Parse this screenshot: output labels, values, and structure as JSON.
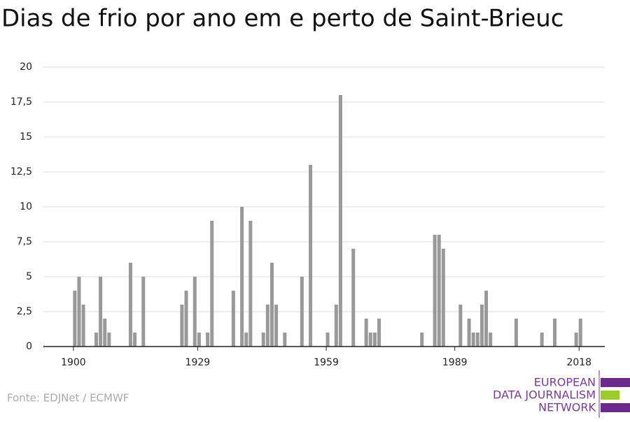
{
  "chart_data": {
    "type": "bar",
    "title": "Dias de frio por ano em e perto de Saint-Brieuc",
    "source": "Fonte: EDJNet / ECMWF",
    "logo": [
      "EUROPEAN",
      "DATA JOURNALISM",
      "NETWORK"
    ],
    "color": "#999999",
    "x": [
      1900,
      1901,
      1902,
      1905,
      1906,
      1907,
      1908,
      1913,
      1914,
      1916,
      1925,
      1926,
      1928,
      1929,
      1931,
      1932,
      1937,
      1939,
      1940,
      1941,
      1944,
      1945,
      1946,
      1947,
      1949,
      1953,
      1955,
      1959,
      1961,
      1962,
      1965,
      1968,
      1969,
      1970,
      1971,
      1981,
      1984,
      1985,
      1986,
      1990,
      1992,
      1993,
      1994,
      1995,
      1996,
      1997,
      2003,
      2009,
      2012,
      2017,
      2018
    ],
    "values": [
      4,
      5,
      3,
      1,
      5,
      2,
      1,
      6,
      1,
      5,
      3,
      4,
      5,
      1,
      1,
      9,
      4,
      10,
      1,
      9,
      1,
      3,
      6,
      3,
      1,
      5,
      13,
      1,
      3,
      18,
      7,
      2,
      1,
      1,
      2,
      1,
      8,
      8,
      7,
      3,
      2,
      1,
      1,
      3,
      4,
      1,
      2,
      1,
      2,
      1,
      2
    ],
    "xlim": [
      1893,
      2024
    ],
    "xticks": [
      1900,
      1929,
      1959,
      1989,
      2018
    ],
    "ylim": [
      0,
      20
    ],
    "yticks": [
      0,
      {
        "value": 2.5,
        "label": "2,5"
      },
      5,
      {
        "value": 7.5,
        "label": "7,5"
      },
      10,
      {
        "value": 12.5,
        "label": "12,5"
      },
      15,
      {
        "value": 17.5,
        "label": "17,5"
      },
      20
    ],
    "grid": true
  }
}
